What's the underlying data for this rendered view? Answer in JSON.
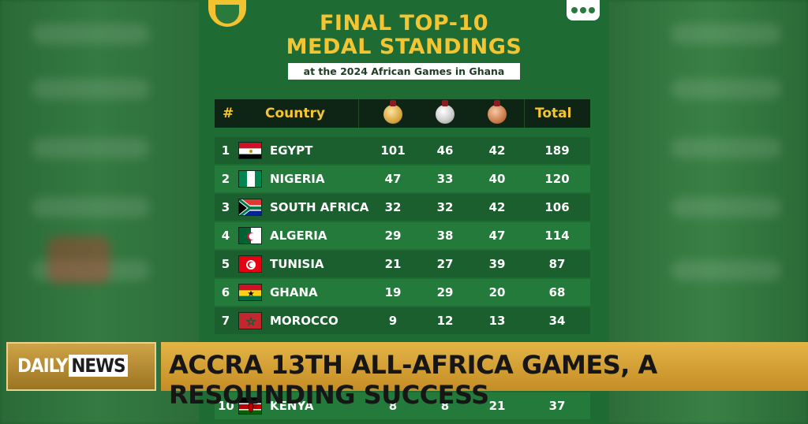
{
  "poster": {
    "title_line1": "FINAL TOP-10",
    "title_line2": "MEDAL STANDINGS",
    "subtitle": "at the 2024 African Games in Ghana"
  },
  "table": {
    "headers": {
      "rank": "#",
      "country": "Country",
      "total": "Total"
    },
    "rows": [
      {
        "rank": "1",
        "country": "EGYPT",
        "gold": "101",
        "silver": "46",
        "bronze": "42",
        "total": "189"
      },
      {
        "rank": "2",
        "country": "NIGERIA",
        "gold": "47",
        "silver": "33",
        "bronze": "40",
        "total": "120"
      },
      {
        "rank": "3",
        "country": "SOUTH AFRICA",
        "gold": "32",
        "silver": "32",
        "bronze": "42",
        "total": "106"
      },
      {
        "rank": "4",
        "country": "ALGERIA",
        "gold": "29",
        "silver": "38",
        "bronze": "47",
        "total": "114"
      },
      {
        "rank": "5",
        "country": "TUNISIA",
        "gold": "21",
        "silver": "27",
        "bronze": "39",
        "total": "87"
      },
      {
        "rank": "6",
        "country": "GHANA",
        "gold": "19",
        "silver": "29",
        "bronze": "20",
        "total": "68"
      },
      {
        "rank": "7",
        "country": "MOROCCO",
        "gold": "9",
        "silver": "12",
        "bronze": "13",
        "total": "34"
      },
      {
        "rank": "10",
        "country": "KENYA",
        "gold": "8",
        "silver": "8",
        "bronze": "21",
        "total": "37"
      }
    ]
  },
  "banner": {
    "logo_daily": "DAILY",
    "logo_news": "NEWS",
    "headline": "ACCRA 13TH ALL-AFRICA GAMES, A RESOUNDING SUCCESS"
  }
}
